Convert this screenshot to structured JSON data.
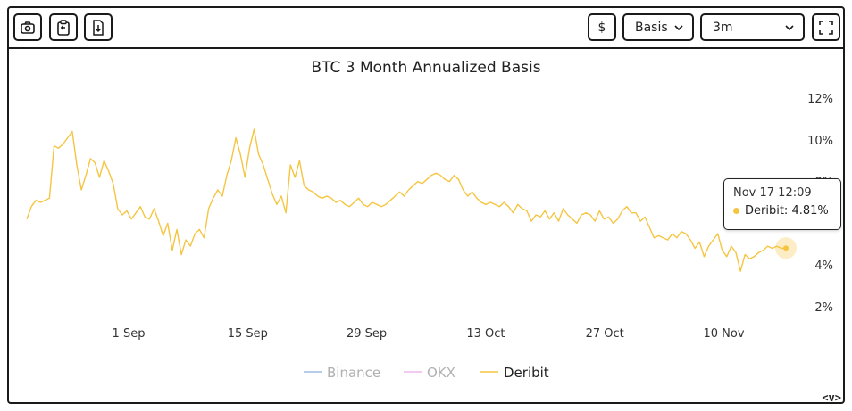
{
  "toolbar": {
    "currency_label": "$",
    "metric_select": "Basis",
    "range_select": "3m"
  },
  "colors": {
    "binance": "#9dbbe0",
    "okx": "#f0b8f0",
    "deribit": "#f5c542"
  },
  "tooltip": {
    "date": "Nov 17 12:09",
    "label": "Deribit: 4.81%"
  },
  "nav": "<v>",
  "chart_data": {
    "type": "line",
    "title": "BTC 3 Month Annualized Basis",
    "xlabel": "",
    "ylabel": "",
    "x_ticks": [
      "1 Sep",
      "15 Sep",
      "29 Sep",
      "13 Oct",
      "27 Oct",
      "10 Nov"
    ],
    "y_ticks": [
      "2%",
      "4%",
      "6%",
      "8%",
      "10%",
      "12%"
    ],
    "ylim": [
      2,
      12
    ],
    "y_axis_position": "right",
    "grid": false,
    "legend": "bottom",
    "legend_entries": [
      "Binance",
      "OKX",
      "Deribit"
    ],
    "series": [
      {
        "name": "Binance",
        "values": []
      },
      {
        "name": "OKX",
        "values": []
      },
      {
        "name": "Deribit",
        "values": [
          6.2,
          6.8,
          7.1,
          7.0,
          7.1,
          7.2,
          9.7,
          9.6,
          9.8,
          10.1,
          10.4,
          8.8,
          7.6,
          8.3,
          9.1,
          8.9,
          8.2,
          9.0,
          8.5,
          7.9,
          6.7,
          6.4,
          6.6,
          6.2,
          6.5,
          6.8,
          6.3,
          6.2,
          6.7,
          6.1,
          5.4,
          6.0,
          4.7,
          5.7,
          4.5,
          5.2,
          4.9,
          5.5,
          5.7,
          5.3,
          6.7,
          7.2,
          7.6,
          7.3,
          8.3,
          9.0,
          10.1,
          9.3,
          8.2,
          9.6,
          10.5,
          9.3,
          8.8,
          8.1,
          7.4,
          6.9,
          7.3,
          6.5,
          8.8,
          8.2,
          9.0,
          7.8,
          7.6,
          7.5,
          7.3,
          7.2,
          7.3,
          7.2,
          7.0,
          7.1,
          6.9,
          6.8,
          7.0,
          7.2,
          6.9,
          6.8,
          7.0,
          6.9,
          6.8,
          6.9,
          7.1,
          7.3,
          7.5,
          7.3,
          7.6,
          7.8,
          8.0,
          7.9,
          8.1,
          8.3,
          8.4,
          8.3,
          8.1,
          8.0,
          8.3,
          8.1,
          7.6,
          7.3,
          7.5,
          7.2,
          7.0,
          6.9,
          7.0,
          6.9,
          6.8,
          7.0,
          6.8,
          6.5,
          6.9,
          6.7,
          6.6,
          6.1,
          6.4,
          6.3,
          6.6,
          6.2,
          6.5,
          6.1,
          6.7,
          6.4,
          6.2,
          6.0,
          6.4,
          6.5,
          6.4,
          6.1,
          6.6,
          6.2,
          6.3,
          6.0,
          6.2,
          6.6,
          6.8,
          6.5,
          6.5,
          6.1,
          6.3,
          5.8,
          5.3,
          5.4,
          5.3,
          5.2,
          5.5,
          5.3,
          5.6,
          5.5,
          5.2,
          4.8,
          5.1,
          4.4,
          4.9,
          5.2,
          5.5,
          4.7,
          4.4,
          4.9,
          4.6,
          3.7,
          4.5,
          4.3,
          4.4,
          4.6,
          4.7,
          4.9,
          4.8,
          4.9,
          4.8,
          4.81
        ]
      }
    ]
  }
}
